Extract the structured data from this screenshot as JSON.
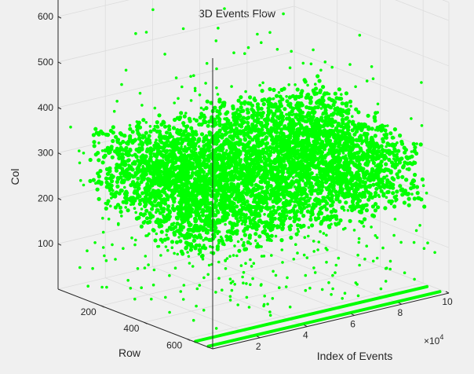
{
  "chart_data": {
    "type": "scatter",
    "projection": "3d",
    "title": "3D Events Flow",
    "xlabel": "Index of Events",
    "ylabel": "Row",
    "zlabel": "Col",
    "x_exponent": "×10",
    "x_exponent_power": "4",
    "x_ticks": [
      "2",
      "4",
      "6",
      "8",
      "10"
    ],
    "y_ticks": [
      "200",
      "400",
      "600"
    ],
    "z_ticks": [
      "100",
      "200",
      "300",
      "400",
      "500",
      "600"
    ],
    "xlim": [
      0,
      100000
    ],
    "ylim": [
      0,
      720
    ],
    "zlim": [
      0,
      640
    ],
    "grid": true,
    "marker_color": "#00ff00",
    "series": [
      {
        "description": "dense event cloud",
        "x_range": [
          0,
          100000
        ],
        "row_range": [
          60,
          620
        ],
        "col_center": 230,
        "col_spread": 110,
        "count": 4200
      },
      {
        "description": "line at row 0",
        "x_range": [
          0,
          98000
        ],
        "row": 640,
        "col": 2
      },
      {
        "description": "line at row 1",
        "x_range": [
          0,
          98000
        ],
        "row": 700,
        "col": 2
      }
    ]
  }
}
